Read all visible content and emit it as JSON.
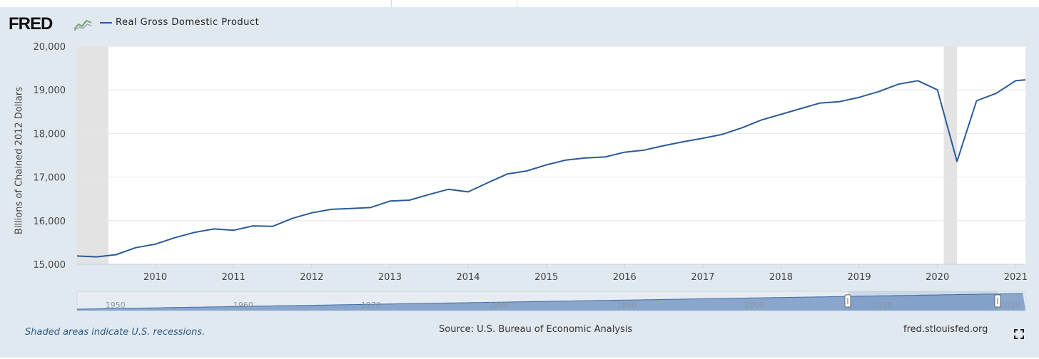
{
  "header": {
    "logo_text": "FRED",
    "logo_icon": "fred-line-chart-icon",
    "legend_label": "Real Gross Domestic Product",
    "series_color": "#2a5b98"
  },
  "chart_data": {
    "type": "line",
    "title": "",
    "ylabel": "Billions of Chained 2012 Dollars",
    "xlabel": "",
    "xlim": [
      2009.0,
      2021.125
    ],
    "ylim": [
      15000,
      20000
    ],
    "yticks": [
      "15,000",
      "16,000",
      "17,000",
      "18,000",
      "19,000",
      "20,000"
    ],
    "ytick_values": [
      15000,
      16000,
      17000,
      18000,
      19000,
      20000
    ],
    "xticks": [
      "2010",
      "2011",
      "2012",
      "2013",
      "2014",
      "2015",
      "2016",
      "2017",
      "2018",
      "2019",
      "2020",
      "2021"
    ],
    "xtick_values": [
      2010,
      2011,
      2012,
      2013,
      2014,
      2015,
      2016,
      2017,
      2018,
      2019,
      2020,
      2021
    ],
    "recessions": [
      [
        2009.0,
        2009.4
      ],
      [
        2020.08,
        2020.25
      ]
    ],
    "series": [
      {
        "name": "Real Gross Domestic Product",
        "x": [
          2009.0,
          2009.25,
          2009.5,
          2009.75,
          2010.0,
          2010.25,
          2010.5,
          2010.75,
          2011.0,
          2011.25,
          2011.5,
          2011.75,
          2012.0,
          2012.25,
          2012.5,
          2012.75,
          2013.0,
          2013.25,
          2013.5,
          2013.75,
          2014.0,
          2014.25,
          2014.5,
          2014.75,
          2015.0,
          2015.25,
          2015.5,
          2015.75,
          2016.0,
          2016.25,
          2016.5,
          2016.75,
          2017.0,
          2017.25,
          2017.5,
          2017.75,
          2018.0,
          2018.25,
          2018.5,
          2018.75,
          2019.0,
          2019.25,
          2019.5,
          2019.75,
          2020.0,
          2020.25,
          2020.5,
          2020.75,
          2021.0,
          2021.125
        ],
        "values": [
          15190,
          15170,
          15220,
          15380,
          15460,
          15610,
          15730,
          15810,
          15780,
          15880,
          15870,
          16050,
          16180,
          16260,
          16280,
          16300,
          16450,
          16470,
          16600,
          16720,
          16660,
          16870,
          17070,
          17140,
          17280,
          17390,
          17440,
          17460,
          17570,
          17620,
          17720,
          17810,
          17890,
          17980,
          18130,
          18310,
          18440,
          18570,
          18700,
          18730,
          18830,
          18960,
          19130,
          19210,
          19000,
          17360,
          18750,
          18920,
          19210,
          19230
        ]
      }
    ]
  },
  "navigator": {
    "labels": [
      "1950",
      "1960",
      "1970",
      "1980",
      "1990",
      "2000",
      "2010",
      "2020"
    ]
  },
  "footer": {
    "note": "Shaded areas indicate U.S. recessions.",
    "source": "Source: U.S. Bureau of Economic Analysis",
    "url": "fred.stlouisfed.org",
    "expand_icon": "fullscreen-icon"
  }
}
